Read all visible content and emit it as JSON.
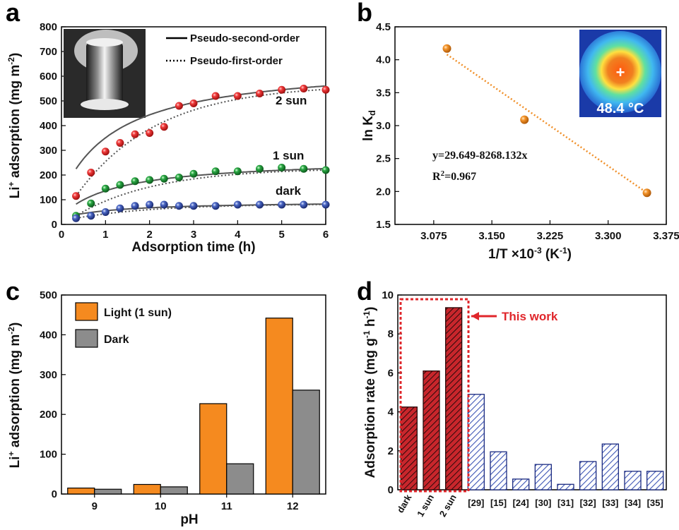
{
  "chart_data": [
    {
      "panel": "a",
      "type": "scatter",
      "xlabel": "Adsorption time (h)",
      "ylabel_main": "Li",
      "ylabel_sup": "+",
      "ylabel_rest": " adsorption (mg m",
      "ylabel_unit_sup": "-2",
      "ylabel_close": ")",
      "xlim": [
        0,
        6
      ],
      "ylim": [
        0,
        800
      ],
      "xticks": [
        "0",
        "1",
        "2",
        "3",
        "4",
        "5",
        "6"
      ],
      "yticks": [
        "0",
        "100",
        "200",
        "300",
        "400",
        "500",
        "600",
        "700",
        "800"
      ],
      "legend": [
        "Pseudo-second-order",
        "Pseudo-first-order"
      ],
      "inset": "photo of sample vial under illumination",
      "series": [
        {
          "name": "2 sun",
          "color": "#e8262b",
          "x": [
            0.33,
            0.67,
            1.0,
            1.33,
            1.67,
            2.0,
            2.33,
            2.67,
            3.0,
            3.5,
            4.0,
            4.5,
            5.0,
            5.5,
            6.0
          ],
          "y": [
            115,
            210,
            295,
            330,
            365,
            370,
            395,
            480,
            490,
            520,
            520,
            530,
            545,
            550,
            545
          ]
        },
        {
          "name": "1 sun",
          "color": "#1c9a3c",
          "x": [
            0.33,
            0.67,
            1.0,
            1.33,
            1.67,
            2.0,
            2.33,
            2.67,
            3.0,
            3.5,
            4.0,
            4.5,
            5.0,
            5.5,
            6.0
          ],
          "y": [
            35,
            85,
            145,
            160,
            175,
            180,
            185,
            190,
            205,
            215,
            215,
            225,
            230,
            225,
            220
          ]
        },
        {
          "name": "dark",
          "color": "#3c58b0",
          "x": [
            0.33,
            0.67,
            1.0,
            1.33,
            1.67,
            2.0,
            2.33,
            2.67,
            3.0,
            3.5,
            4.0,
            4.5,
            5.0,
            5.5,
            6.0
          ],
          "y": [
            25,
            35,
            50,
            65,
            75,
            80,
            80,
            75,
            75,
            75,
            80,
            80,
            80,
            80,
            80
          ]
        }
      ],
      "labels": [
        "2 sun",
        "1 sun",
        "dark"
      ]
    },
    {
      "panel": "b",
      "type": "scatter",
      "xlabel_main": "1/T ×10",
      "xlabel_sup": "-3",
      "xlabel_unit": " (K",
      "xlabel_unit_sup": "-1",
      "xlabel_close": ")",
      "ylabel_main": "ln K",
      "ylabel_sub": "d",
      "xlim": [
        3.025,
        3.375
      ],
      "ylim": [
        1.5,
        4.5
      ],
      "xticks": [
        "3.075",
        "3.150",
        "3.225",
        "3.300",
        "3.375"
      ],
      "yticks": [
        "1.5",
        "2.0",
        "2.5",
        "3.0",
        "3.5",
        "4.0",
        "4.5"
      ],
      "x": [
        3.092,
        3.192,
        3.35
      ],
      "y": [
        4.17,
        3.09,
        1.98
      ],
      "fit_x": [
        3.092,
        3.35
      ],
      "fit_y": [
        4.08,
        1.98
      ],
      "equation": "y=29.649-8268.132x",
      "r2_main": "R",
      "r2_sup": "2",
      "r2_value": "=0.967",
      "inset_temperature": "48.4 °C",
      "inset_marker": "+",
      "color": "#f0902a"
    },
    {
      "panel": "c",
      "type": "bar",
      "xlabel": "pH",
      "ylabel_main": "Li",
      "ylabel_sup": "+",
      "ylabel_rest": " adsorption (mg m",
      "ylabel_unit_sup": "-2",
      "ylabel_close": ")",
      "ylim": [
        0,
        500
      ],
      "yticks": [
        "0",
        "100",
        "200",
        "300",
        "400",
        "500"
      ],
      "categories": [
        "9",
        "10",
        "11",
        "12"
      ],
      "series": [
        {
          "name": "Light (1 sun)",
          "color": "#f58a1f",
          "values": [
            15,
            24,
            227,
            442
          ]
        },
        {
          "name": "Dark",
          "color": "#8c8c8c",
          "values": [
            12,
            18,
            76,
            261
          ]
        }
      ]
    },
    {
      "panel": "d",
      "type": "bar",
      "ylabel_main": "Adsorption rate  (mg g",
      "ylabel_sup1": "-1",
      "ylabel_mid": " h",
      "ylabel_sup2": "-1",
      "ylabel_close": ")",
      "ylim": [
        0,
        10
      ],
      "yticks": [
        "0",
        "2",
        "4",
        "6",
        "8",
        "10"
      ],
      "categories": [
        "dark",
        "1 sun",
        "2 sun",
        "[29]",
        "[15]",
        "[24]",
        "[30]",
        "[31]",
        "[32]",
        "[33]",
        "[34]",
        "[35]"
      ],
      "values": [
        4.25,
        6.1,
        9.35,
        4.9,
        1.95,
        0.55,
        1.3,
        0.28,
        1.45,
        2.35,
        0.95,
        0.95
      ],
      "group": [
        "this",
        "this",
        "this",
        "ref",
        "ref",
        "ref",
        "ref",
        "ref",
        "ref",
        "ref",
        "ref",
        "ref"
      ],
      "colors": {
        "this": "#c8262c",
        "ref": "#3c55b5",
        "highlight": "#e0262b"
      },
      "annotation": "This work"
    }
  ],
  "panel_labels": [
    "a",
    "b",
    "c",
    "d"
  ]
}
